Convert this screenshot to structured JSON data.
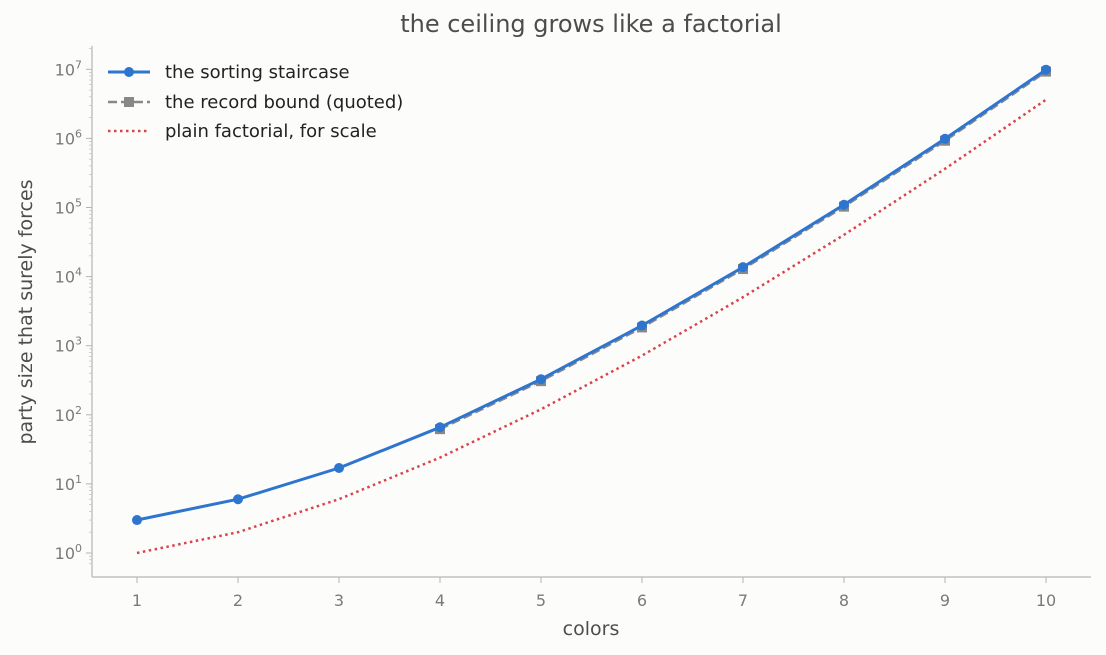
{
  "chart_data": {
    "type": "line",
    "title": "the ceiling grows like a factorial",
    "xlabel": "colors",
    "ylabel": "party size that surely forces",
    "yscale": "log",
    "ylim": [
      0.7,
      20000000
    ],
    "xlim": [
      0.55,
      10.45
    ],
    "x_ticks": [
      1,
      2,
      3,
      4,
      5,
      6,
      7,
      8,
      9,
      10
    ],
    "y_ticks": [
      {
        "value": 1,
        "base": "10",
        "exp": "0"
      },
      {
        "value": 10,
        "base": "10",
        "exp": "1"
      },
      {
        "value": 100,
        "base": "10",
        "exp": "2"
      },
      {
        "value": 1000,
        "base": "10",
        "exp": "3"
      },
      {
        "value": 10000,
        "base": "10",
        "exp": "4"
      },
      {
        "value": 100000,
        "base": "10",
        "exp": "5"
      },
      {
        "value": 1000000,
        "base": "10",
        "exp": "6"
      },
      {
        "value": 10000000,
        "base": "10",
        "exp": "7"
      }
    ],
    "grid": false,
    "legend_position": "top-left",
    "series": [
      {
        "name": "the sorting staircase",
        "color": "#2e75d0",
        "style": "solid",
        "marker": "circle",
        "x": [
          1,
          2,
          3,
          4,
          5,
          6,
          7,
          8,
          9,
          10
        ],
        "values": [
          3,
          6,
          17,
          66,
          327,
          1958,
          13701,
          109602,
          986410,
          9864101
        ]
      },
      {
        "name": "the record bound (quoted)",
        "color": "#888888",
        "style": "dashed",
        "marker": "square",
        "x": [
          4,
          5,
          6,
          7,
          8,
          9,
          10
        ],
        "values": [
          62,
          307,
          1838,
          12861,
          102882,
          925931,
          9259302
        ]
      },
      {
        "name": "plain factorial, for scale",
        "color": "#d9434a",
        "style": "dotted",
        "marker": "none",
        "x": [
          1,
          2,
          3,
          4,
          5,
          6,
          7,
          8,
          9,
          10
        ],
        "values": [
          1,
          2,
          6,
          24,
          120,
          720,
          5040,
          40320,
          362880,
          3628800
        ]
      }
    ]
  }
}
